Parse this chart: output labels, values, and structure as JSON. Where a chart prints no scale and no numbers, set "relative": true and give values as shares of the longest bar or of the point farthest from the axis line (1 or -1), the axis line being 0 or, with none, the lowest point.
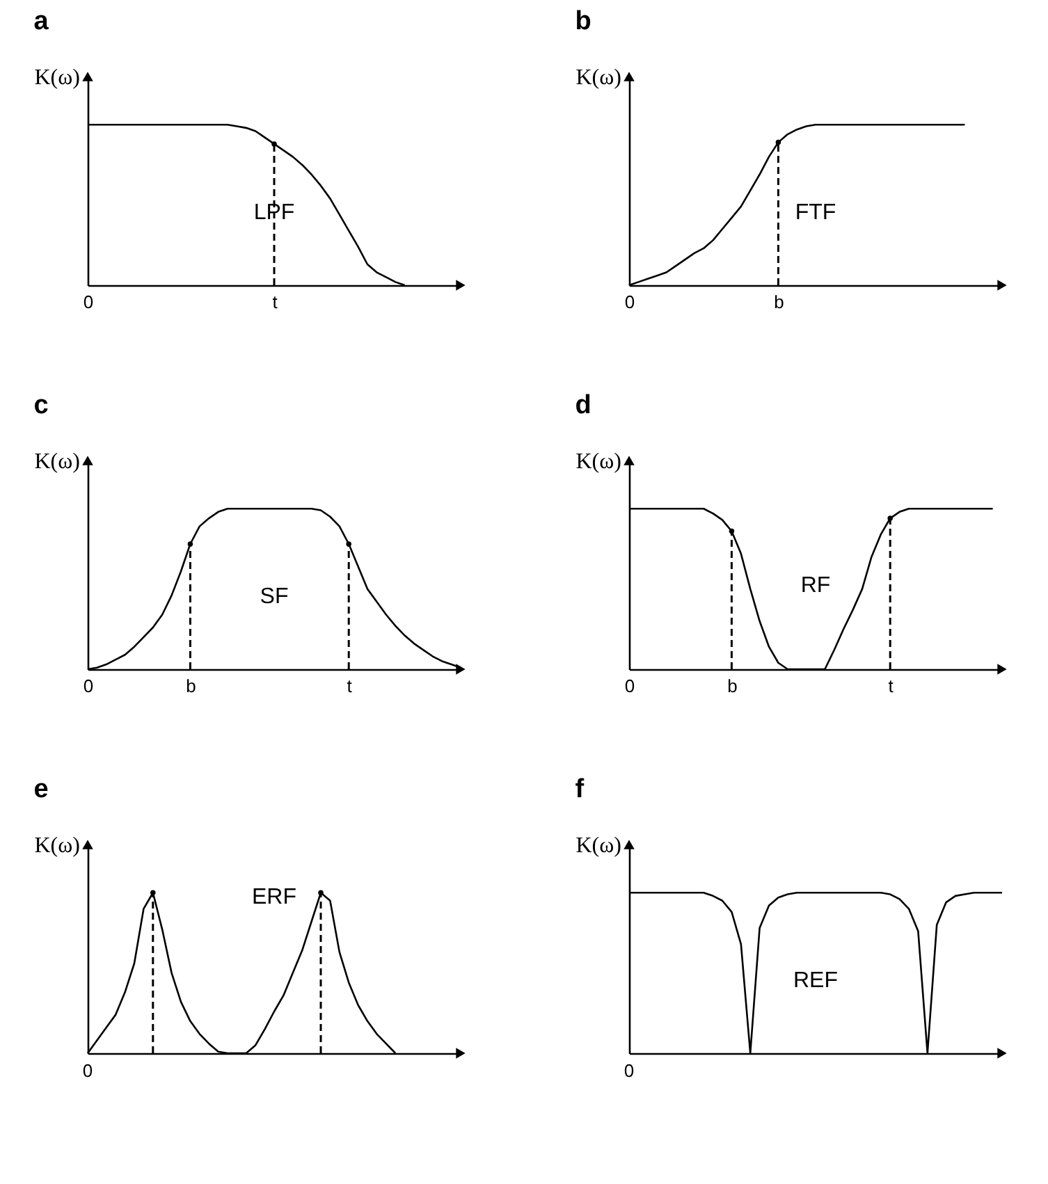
{
  "chart_data": [
    {
      "type": "line",
      "title": "a",
      "ylabel": "K(ω)",
      "relative": true,
      "categories": [
        "0",
        null,
        null,
        null,
        null,
        null,
        null,
        null,
        null,
        null,
        null,
        null,
        null,
        null,
        null,
        null,
        null,
        null,
        null,
        null,
        "t",
        null,
        null,
        null,
        null,
        null,
        null,
        null,
        null,
        null,
        null,
        null,
        null,
        null,
        null,
        null,
        null,
        null,
        null,
        null,
        null
      ],
      "annotations": [
        "LPF"
      ],
      "series": [
        {
          "color": "#000000",
          "values": [
            1,
            1,
            1,
            1,
            1,
            1,
            1,
            1,
            1,
            1,
            1,
            1,
            1,
            1,
            1,
            1,
            0.99,
            0.98,
            0.96,
            0.92,
            0.88,
            0.84,
            0.8,
            0.75,
            0.69,
            0.62,
            0.54,
            0.44,
            0.34,
            0.24,
            0.13,
            0.08,
            0.05,
            0.02,
            0,
            null,
            null,
            null,
            null,
            null,
            null
          ]
        },
        {
          "type": "lollipop",
          "line_style": "dashed",
          "marker": "circle",
          "color": "#000000",
          "values": [
            null,
            null,
            null,
            null,
            null,
            null,
            null,
            null,
            null,
            null,
            null,
            null,
            null,
            null,
            null,
            null,
            null,
            null,
            null,
            null,
            0.88,
            null,
            null,
            null,
            null,
            null,
            null,
            null,
            null,
            null,
            null,
            null,
            null,
            null,
            null,
            null,
            null,
            null,
            null,
            null,
            null
          ]
        }
      ]
    },
    {
      "type": "line",
      "title": "b",
      "ylabel": "K(ω)",
      "relative": true,
      "categories": [
        "0",
        null,
        null,
        null,
        null,
        null,
        null,
        null,
        null,
        null,
        null,
        null,
        null,
        null,
        null,
        null,
        "b",
        null,
        null,
        null,
        null,
        null,
        null,
        null,
        null,
        null,
        null,
        null,
        null,
        null,
        null,
        null,
        null,
        null,
        null,
        null,
        null,
        null,
        null,
        null,
        null
      ],
      "annotations": [
        "FTF"
      ],
      "series": [
        {
          "color": "#000000",
          "values": [
            0,
            0.02,
            0.04,
            0.06,
            0.08,
            0.12,
            0.16,
            0.2,
            0.23,
            0.28,
            0.35,
            0.42,
            0.49,
            0.59,
            0.69,
            0.8,
            0.89,
            0.94,
            0.97,
            0.99,
            1,
            1,
            1,
            1,
            1,
            1,
            1,
            1,
            1,
            1,
            1,
            1,
            1,
            1,
            1,
            1,
            1,
            null,
            null,
            null,
            null
          ]
        },
        {
          "type": "lollipop",
          "line_style": "dashed",
          "marker": "circle",
          "color": "#000000",
          "values": [
            null,
            null,
            null,
            null,
            null,
            null,
            null,
            null,
            null,
            null,
            null,
            null,
            null,
            null,
            null,
            null,
            0.89,
            null,
            null,
            null,
            null,
            null,
            null,
            null,
            null,
            null,
            null,
            null,
            null,
            null,
            null,
            null,
            null,
            null,
            null,
            null,
            null,
            null,
            null,
            null,
            null
          ]
        }
      ]
    },
    {
      "type": "line",
      "title": "c",
      "ylabel": "K(ω)",
      "relative": true,
      "categories": [
        "0",
        null,
        null,
        null,
        null,
        null,
        null,
        null,
        null,
        null,
        null,
        "b",
        null,
        null,
        null,
        null,
        null,
        null,
        null,
        null,
        null,
        null,
        null,
        null,
        null,
        null,
        null,
        null,
        "t",
        null,
        null,
        null,
        null,
        null,
        null,
        null,
        null,
        null,
        null,
        null,
        null
      ],
      "annotations": [
        "SF"
      ],
      "series": [
        {
          "color": "#000000",
          "values": [
            0,
            0.01,
            0.03,
            0.06,
            0.09,
            0.14,
            0.2,
            0.26,
            0.34,
            0.46,
            0.61,
            0.78,
            0.89,
            0.94,
            0.98,
            1,
            1,
            1,
            1,
            1,
            1,
            1,
            1,
            1,
            1,
            0.99,
            0.95,
            0.89,
            0.78,
            0.64,
            0.5,
            0.42,
            0.34,
            0.27,
            0.21,
            0.16,
            0.12,
            0.08,
            0.05,
            0.03,
            0.01
          ]
        },
        {
          "type": "lollipop",
          "line_style": "dashed",
          "marker": "circle",
          "color": "#000000",
          "values": [
            null,
            null,
            null,
            null,
            null,
            null,
            null,
            null,
            null,
            null,
            null,
            0.78,
            null,
            null,
            null,
            null,
            null,
            null,
            null,
            null,
            null,
            null,
            null,
            null,
            null,
            null,
            null,
            null,
            0.78,
            null,
            null,
            null,
            null,
            null,
            null,
            null,
            null,
            null,
            null,
            null,
            null
          ]
        }
      ]
    },
    {
      "type": "line",
      "title": "d",
      "ylabel": "K(ω)",
      "relative": true,
      "categories": [
        "0",
        null,
        null,
        null,
        null,
        null,
        null,
        null,
        null,
        null,
        null,
        "b",
        null,
        null,
        null,
        null,
        null,
        null,
        null,
        null,
        null,
        null,
        null,
        null,
        null,
        null,
        null,
        null,
        "t",
        null,
        null,
        null,
        null,
        null,
        null,
        null,
        null,
        null,
        null,
        null,
        null
      ],
      "annotations": [
        "RF"
      ],
      "series": [
        {
          "color": "#000000",
          "values": [
            1,
            1,
            1,
            1,
            1,
            1,
            1,
            1,
            1,
            0.97,
            0.93,
            0.86,
            0.72,
            0.5,
            0.3,
            0.14,
            0.04,
            0,
            0,
            0,
            0,
            0,
            0.12,
            0.25,
            0.37,
            0.5,
            0.7,
            0.84,
            0.94,
            0.98,
            1,
            1,
            1,
            1,
            1,
            1,
            1,
            1,
            1,
            1,
            null
          ]
        },
        {
          "type": "lollipop",
          "line_style": "dashed",
          "marker": "circle",
          "color": "#000000",
          "values": [
            null,
            null,
            null,
            null,
            null,
            null,
            null,
            null,
            null,
            null,
            null,
            0.86,
            null,
            null,
            null,
            null,
            null,
            null,
            null,
            null,
            null,
            null,
            null,
            null,
            null,
            null,
            null,
            null,
            0.94,
            null,
            null,
            null,
            null,
            null,
            null,
            null,
            null,
            null,
            null,
            null,
            null
          ]
        }
      ]
    },
    {
      "type": "line",
      "title": "e",
      "ylabel": "K(ω)",
      "relative": true,
      "categories": [
        null,
        null,
        null,
        null,
        null,
        null,
        null,
        null,
        null,
        null,
        null,
        null,
        null,
        null,
        null,
        null,
        null,
        null,
        null,
        null,
        null,
        null,
        null,
        null,
        null,
        null,
        null,
        null,
        null,
        null,
        null,
        null,
        null,
        null,
        null,
        null,
        null,
        null,
        null,
        null,
        null
      ],
      "annotations": [
        "0",
        "ERF"
      ],
      "series": [
        {
          "color": "#000000",
          "values": [
            0,
            0.08,
            0.16,
            0.24,
            0.38,
            0.56,
            0.9,
            1,
            0.77,
            0.5,
            0.32,
            0.2,
            0.12,
            0.06,
            0.01,
            0,
            0,
            0,
            0.05,
            0.15,
            0.26,
            0.36,
            0.5,
            0.64,
            0.82,
            1,
            0.95,
            0.63,
            0.44,
            0.3,
            0.2,
            0.12,
            0.06,
            0,
            null,
            null,
            null,
            null,
            null,
            null,
            null
          ]
        },
        {
          "type": "lollipop",
          "line_style": "dashed",
          "marker": "circle",
          "color": "#000000",
          "values": [
            null,
            null,
            null,
            null,
            null,
            null,
            null,
            1,
            null,
            null,
            null,
            null,
            null,
            null,
            null,
            null,
            null,
            null,
            null,
            null,
            null,
            null,
            null,
            null,
            null,
            1,
            null,
            null,
            null,
            null,
            null,
            null,
            null,
            null,
            null,
            null,
            null,
            null,
            null,
            null,
            null
          ]
        }
      ]
    },
    {
      "type": "line",
      "title": "f",
      "ylabel": "K(ω)",
      "relative": true,
      "categories": [
        null,
        null,
        null,
        null,
        null,
        null,
        null,
        null,
        null,
        null,
        null,
        null,
        null,
        null,
        null,
        null,
        null,
        null,
        null,
        null,
        null,
        null,
        null,
        null,
        null,
        null,
        null,
        null,
        null,
        null,
        null,
        null,
        null,
        null,
        null,
        null,
        null,
        null,
        null,
        null,
        null
      ],
      "annotations": [
        "0",
        "REF"
      ],
      "series": [
        {
          "color": "#000000",
          "values": [
            1,
            1,
            1,
            1,
            1,
            1,
            1,
            1,
            1,
            0.98,
            0.95,
            0.88,
            0.68,
            0,
            0.78,
            0.92,
            0.97,
            0.99,
            1,
            1,
            1,
            1,
            1,
            1,
            1,
            1,
            1,
            1,
            0.99,
            0.96,
            0.9,
            0.76,
            0,
            0.8,
            0.94,
            0.98,
            0.99,
            1,
            1,
            1,
            1
          ]
        }
      ]
    }
  ]
}
